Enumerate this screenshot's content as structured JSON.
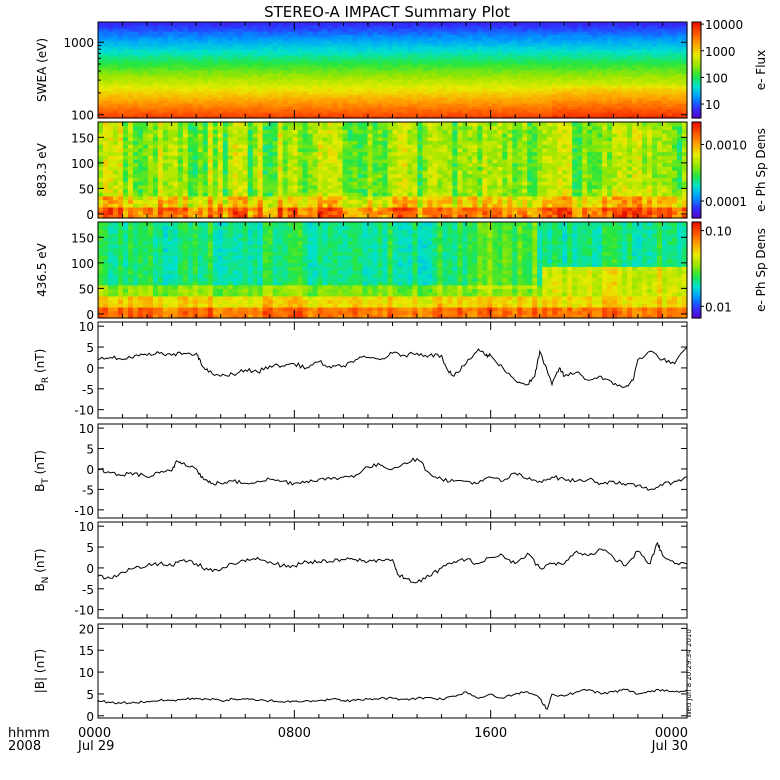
{
  "title": "STEREO-A IMPACT Summary Plot",
  "stamp": "Wed Jun  8 20:29:34 2010",
  "time_axis": {
    "label_line1": "hhmm",
    "label_line2": "2008",
    "ticks": [
      {
        "hours": 0,
        "label": "0000",
        "date": "Jul 29"
      },
      {
        "hours": 8,
        "label": "0800",
        "date": ""
      },
      {
        "hours": 16,
        "label": "1600",
        "date": ""
      },
      {
        "hours": 24,
        "label": "0000",
        "date": "Jul 30"
      }
    ],
    "range_hours": [
      0,
      24
    ]
  },
  "colors": {
    "trace": "#000000",
    "colormap": [
      "#5a00c8",
      "#2f32ff",
      "#0099ff",
      "#00e0d0",
      "#25e640",
      "#9ae600",
      "#e8ea00",
      "#ffa000",
      "#ff5500",
      "#e61000"
    ]
  },
  "chart_data": [
    {
      "type": "heatmap",
      "ylabel": "SWEA (eV)",
      "yscale": "log",
      "ylim": [
        90,
        1900
      ],
      "yticks": [
        {
          "v": 100,
          "label": "100"
        },
        {
          "v": 1000,
          "label": "1000"
        }
      ],
      "colorbar": {
        "label": "e- Flux",
        "scale": "log",
        "range": [
          3,
          12000
        ],
        "ticks": [
          {
            "v": 10000,
            "label": "10000"
          },
          {
            "v": 1000,
            "label": "1000"
          },
          {
            "v": 100,
            "label": "100"
          },
          {
            "v": 10,
            "label": "10"
          }
        ]
      },
      "description_levels": [
        {
          "energy": 100,
          "flux": 9000
        },
        {
          "energy": 200,
          "flux": 4000
        },
        {
          "energy": 400,
          "flux": 700
        },
        {
          "energy": 800,
          "flux": 90
        },
        {
          "energy": 1200,
          "flux": 15
        },
        {
          "energy": 1700,
          "flux": 5
        }
      ]
    },
    {
      "type": "heatmap",
      "ylabel": "883.3 eV",
      "ylim": [
        -8,
        180
      ],
      "yticks": [
        {
          "v": 0,
          "label": "0"
        },
        {
          "v": 50,
          "label": "50"
        },
        {
          "v": 100,
          "label": "100"
        },
        {
          "v": 150,
          "label": "150"
        }
      ],
      "colorbar": {
        "label": "e- Ph Sp Dens",
        "scale": "log",
        "range": [
          5e-05,
          0.0025
        ],
        "ticks": [
          {
            "v": 0.001,
            "label": "0.0010"
          },
          {
            "v": 0.0001,
            "label": "0.0001"
          }
        ]
      }
    },
    {
      "type": "heatmap",
      "ylabel": "436.5 eV",
      "ylim": [
        -8,
        180
      ],
      "yticks": [
        {
          "v": 0,
          "label": "0"
        },
        {
          "v": 50,
          "label": "50"
        },
        {
          "v": 100,
          "label": "100"
        },
        {
          "v": 150,
          "label": "150"
        }
      ],
      "colorbar": {
        "label": "e- Ph Sp Dens",
        "scale": "log",
        "range": [
          0.007,
          0.13
        ],
        "ticks": [
          {
            "v": 0.1,
            "label": "0.10"
          },
          {
            "v": 0.01,
            "label": "0.01"
          }
        ]
      }
    },
    {
      "type": "line",
      "ylabel_main": "B",
      "ylabel_sub": "R",
      "ylabel_unit": " (nT)",
      "ylim": [
        -12,
        11
      ],
      "yticks": [
        10,
        5,
        0,
        -5,
        -10
      ],
      "x": [
        0,
        0.5,
        1,
        1.5,
        2,
        2.5,
        3,
        3.5,
        4,
        4.2,
        4.5,
        5,
        5.5,
        6,
        6.5,
        7,
        7.5,
        8,
        8.5,
        9,
        9.5,
        10,
        10.5,
        11,
        11.5,
        12,
        12.5,
        13,
        13.5,
        14,
        14.2,
        14.5,
        15,
        15.5,
        15.8,
        16,
        16.5,
        17,
        17.5,
        17.8,
        18,
        18.5,
        18.8,
        19,
        19.5,
        20,
        20.5,
        21,
        21.5,
        21.8,
        22,
        22.5,
        23,
        23.5,
        24
      ],
      "values": [
        2,
        2.5,
        2,
        3,
        3,
        3.5,
        3,
        3.5,
        3.5,
        1,
        -1,
        -2,
        -1.5,
        -0.5,
        -1,
        0.5,
        0.5,
        1,
        0,
        1.5,
        0,
        0.5,
        2,
        2.5,
        2,
        3.5,
        3,
        3.5,
        3,
        3,
        0,
        -2,
        1,
        4.5,
        3,
        3,
        0,
        -3,
        -4,
        -2,
        4,
        -4,
        0,
        -2,
        -1,
        -3,
        -2,
        -4,
        -4.5,
        -3,
        2,
        4,
        2,
        1,
        5
      ]
    },
    {
      "type": "line",
      "ylabel_main": "B",
      "ylabel_sub": "T",
      "ylabel_unit": " (nT)",
      "ylim": [
        -12,
        11
      ],
      "yticks": [
        10,
        5,
        0,
        -5,
        -10
      ],
      "x": [
        0,
        0.5,
        1,
        1.5,
        2,
        2.5,
        3,
        3.2,
        3.5,
        4,
        4.3,
        4.6,
        5,
        5.5,
        6,
        6.5,
        7,
        7.5,
        8,
        8.5,
        9,
        9.5,
        10,
        10.5,
        11,
        11.5,
        12,
        12.5,
        13,
        13.5,
        14,
        14.5,
        15,
        15.5,
        16,
        16.5,
        17,
        17.5,
        18,
        18.5,
        19,
        19.5,
        20,
        20.5,
        21,
        21.5,
        22,
        22.5,
        23,
        23.5,
        24
      ],
      "values": [
        0,
        -1,
        -1.5,
        -1,
        -2,
        -1,
        -0.5,
        2,
        1.5,
        0,
        -2.5,
        -3.5,
        -3.5,
        -3,
        -3.5,
        -3,
        -2.5,
        -3,
        -3.5,
        -3,
        -2.5,
        -2.5,
        -2,
        -1.5,
        0.5,
        1,
        0,
        1.5,
        2.5,
        -1,
        -2.5,
        -3,
        -3,
        -3.5,
        -2,
        -3,
        -1,
        -2.5,
        -3,
        -2,
        -2.5,
        -3,
        -2.5,
        -3.5,
        -3,
        -4,
        -4,
        -5,
        -4,
        -3,
        -2
      ]
    },
    {
      "type": "line",
      "ylabel_main": "B",
      "ylabel_sub": "N",
      "ylabel_unit": " (nT)",
      "ylim": [
        -12,
        11
      ],
      "yticks": [
        10,
        5,
        0,
        -5,
        -10
      ],
      "x": [
        0,
        0.5,
        1,
        1.5,
        2,
        2.5,
        3,
        3.5,
        4,
        4.5,
        5,
        5.5,
        6,
        6.5,
        7,
        7.5,
        8,
        8.5,
        9,
        9.5,
        10,
        10.5,
        11,
        11.5,
        12,
        12.2,
        12.5,
        13,
        13.5,
        14,
        14.5,
        15,
        15.5,
        16,
        16.5,
        17,
        17.5,
        18,
        18.5,
        19,
        19.5,
        20,
        20.5,
        21,
        21.5,
        22,
        22.5,
        22.8,
        23,
        23.5,
        24
      ],
      "values": [
        -2,
        -2.5,
        -1,
        0,
        0.5,
        1,
        0.5,
        2,
        1,
        -0.5,
        -0.5,
        1,
        1.5,
        2.5,
        1.5,
        0.5,
        0.5,
        1.5,
        1.5,
        1.5,
        2,
        2,
        1.5,
        2,
        2,
        -1.5,
        -2.5,
        -3.5,
        -2,
        0,
        1.5,
        2,
        1,
        2.5,
        3,
        1,
        3.5,
        0,
        1,
        1,
        4,
        3,
        4.5,
        2.5,
        0.5,
        4,
        1,
        6,
        3,
        1,
        1
      ]
    },
    {
      "type": "line",
      "ylabel_main": "|B|",
      "ylabel_sub": "",
      "ylabel_unit": " (nT)",
      "ylim": [
        -0.5,
        21
      ],
      "yticks": [
        20,
        15,
        10,
        5,
        0
      ],
      "x": [
        0,
        0.5,
        1,
        1.5,
        2,
        2.5,
        3,
        3.5,
        4,
        4.5,
        5,
        5.5,
        6,
        6.5,
        7,
        7.5,
        8,
        8.5,
        9,
        9.5,
        10,
        10.5,
        11,
        11.5,
        12,
        12.5,
        13,
        13.5,
        14,
        14.5,
        15,
        15.5,
        16,
        16.5,
        17,
        17.5,
        18,
        18.3,
        18.5,
        19,
        19.5,
        20,
        20.5,
        21,
        21.5,
        22,
        22.5,
        23,
        23.5,
        24
      ],
      "values": [
        3.5,
        3,
        3,
        3,
        3.3,
        3.5,
        3.5,
        3.8,
        4,
        3.8,
        3.5,
        3.8,
        3.8,
        3.5,
        3.5,
        3.2,
        3.3,
        3.5,
        3.5,
        3.8,
        3.5,
        3.5,
        3.8,
        4,
        4,
        3.8,
        4,
        4.2,
        3.8,
        4.5,
        5.5,
        4,
        5,
        4,
        5,
        5.5,
        4,
        1.5,
        5,
        4.5,
        5.5,
        6,
        5,
        5.5,
        6,
        5,
        5.5,
        6,
        5.5,
        6
      ]
    }
  ]
}
